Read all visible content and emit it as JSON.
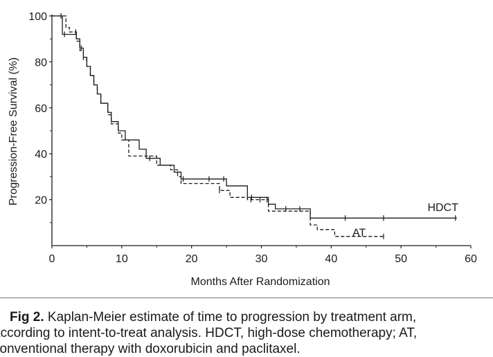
{
  "chart_data": {
    "type": "line",
    "subtype": "kaplan-meier-step",
    "title": "",
    "xlabel": "Months After Randomization",
    "ylabel": "Progression-Free Survival (%)",
    "xlim": [
      0,
      60
    ],
    "ylim": [
      0,
      100
    ],
    "x_ticks": [
      0,
      10,
      20,
      30,
      40,
      50,
      60
    ],
    "y_ticks": [
      20,
      40,
      60,
      80,
      100
    ],
    "grid": false,
    "legend": "none (series labeled directly on lines)",
    "series": [
      {
        "name": "HDCT",
        "line_style": "solid",
        "label_position": [
          56,
          15
        ],
        "steps": [
          [
            0,
            100
          ],
          [
            1.5,
            100
          ],
          [
            1.5,
            92
          ],
          [
            3.5,
            92
          ],
          [
            3.5,
            90
          ],
          [
            4,
            90
          ],
          [
            4,
            86
          ],
          [
            4.5,
            86
          ],
          [
            4.5,
            82
          ],
          [
            5,
            82
          ],
          [
            5,
            78
          ],
          [
            5.5,
            78
          ],
          [
            5.5,
            74
          ],
          [
            6,
            74
          ],
          [
            6,
            70
          ],
          [
            6.5,
            70
          ],
          [
            6.5,
            66
          ],
          [
            7,
            66
          ],
          [
            7,
            62
          ],
          [
            8,
            62
          ],
          [
            8,
            58
          ],
          [
            8.5,
            58
          ],
          [
            8.5,
            54
          ],
          [
            9.5,
            54
          ],
          [
            9.5,
            50
          ],
          [
            10.5,
            50
          ],
          [
            10.5,
            46
          ],
          [
            12.5,
            46
          ],
          [
            12.5,
            42
          ],
          [
            13.5,
            42
          ],
          [
            13.5,
            38
          ],
          [
            15.5,
            38
          ],
          [
            15.5,
            35
          ],
          [
            17.5,
            35
          ],
          [
            17.5,
            32
          ],
          [
            18.5,
            32
          ],
          [
            18.5,
            29
          ],
          [
            25,
            29
          ],
          [
            25,
            26
          ],
          [
            28,
            26
          ],
          [
            28,
            21
          ],
          [
            31,
            21
          ],
          [
            31,
            18
          ],
          [
            32,
            18
          ],
          [
            32,
            16
          ],
          [
            37,
            16
          ],
          [
            37,
            12
          ],
          [
            58,
            12
          ]
        ],
        "censored_x": [
          1.8,
          4.2,
          14,
          18.8,
          22.5,
          24.6,
          28.6,
          33.5,
          35.5,
          42,
          47.5,
          57.8
        ]
      },
      {
        "name": "AT",
        "line_style": "dashed",
        "label_position": [
          44,
          4
        ],
        "steps": [
          [
            0,
            100
          ],
          [
            2,
            100
          ],
          [
            2,
            95
          ],
          [
            2.5,
            95
          ],
          [
            2.5,
            93
          ],
          [
            3.5,
            93
          ],
          [
            3.5,
            89
          ],
          [
            4,
            89
          ],
          [
            4,
            85
          ],
          [
            4.5,
            85
          ],
          [
            4.5,
            81
          ],
          [
            5,
            81
          ],
          [
            5,
            78
          ],
          [
            5.5,
            78
          ],
          [
            5.5,
            74
          ],
          [
            6,
            74
          ],
          [
            6,
            70
          ],
          [
            6.5,
            70
          ],
          [
            6.5,
            66
          ],
          [
            7,
            66
          ],
          [
            7,
            62
          ],
          [
            8,
            62
          ],
          [
            8,
            57
          ],
          [
            8.5,
            57
          ],
          [
            8.5,
            53
          ],
          [
            9.5,
            53
          ],
          [
            9.5,
            49
          ],
          [
            10,
            49
          ],
          [
            10,
            46
          ],
          [
            11,
            46
          ],
          [
            11,
            39
          ],
          [
            15,
            39
          ],
          [
            15,
            35
          ],
          [
            17,
            35
          ],
          [
            17,
            33
          ],
          [
            18,
            33
          ],
          [
            18,
            30
          ],
          [
            18.5,
            30
          ],
          [
            18.5,
            27
          ],
          [
            24,
            27
          ],
          [
            24,
            24
          ],
          [
            25.5,
            24
          ],
          [
            25.5,
            21
          ],
          [
            28,
            21
          ],
          [
            28,
            20
          ],
          [
            31,
            20
          ],
          [
            31,
            15
          ],
          [
            37,
            15
          ],
          [
            37,
            9
          ],
          [
            38,
            9
          ],
          [
            38,
            7
          ],
          [
            40.5,
            7
          ],
          [
            40.5,
            4
          ],
          [
            47.5,
            4
          ]
        ],
        "censored_x": [
          1.3,
          3.4,
          24,
          28.5,
          29.8,
          30.8,
          47.5
        ]
      }
    ]
  },
  "caption": {
    "label": "Fig 2.",
    "lines": [
      "Kaplan-Meier estimate of time to progression by treatment arm,",
      "according to intent-to-treat analysis. HDCT, high-dose chemotherapy; AT,",
      "conventional therapy with doxorubicin and paclitaxel."
    ]
  }
}
